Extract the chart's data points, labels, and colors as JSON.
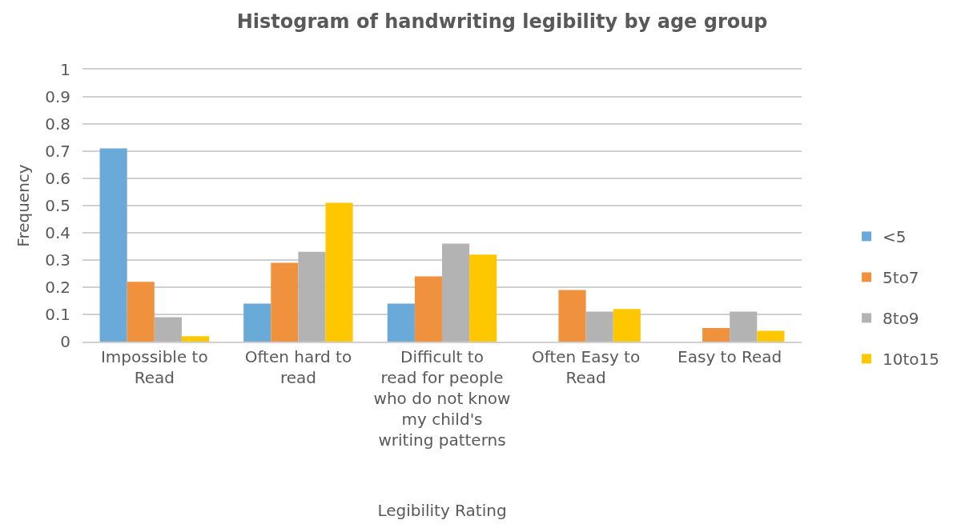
{
  "chart_data": {
    "type": "bar",
    "title": "Histogram of handwriting legibility by age group",
    "xlabel": "Legibility Rating",
    "ylabel": "Frequency",
    "categories": [
      "Impossible to Read",
      "Often hard to read",
      "Difficult to read for people who do not know my child's writing patterns",
      "Often Easy to Read",
      "Easy to Read"
    ],
    "series": [
      {
        "name": "<5",
        "color": "#6aaad9",
        "values": [
          0.71,
          0.14,
          0.14,
          0,
          0
        ]
      },
      {
        "name": "5to7",
        "color": "#f0913e",
        "values": [
          0.22,
          0.29,
          0.24,
          0.19,
          0.05
        ]
      },
      {
        "name": "8to9",
        "color": "#b3b3b3",
        "values": [
          0.09,
          0.33,
          0.36,
          0.11,
          0.11
        ]
      },
      {
        "name": "10to15",
        "color": "#ffc700",
        "values": [
          0.02,
          0.51,
          0.32,
          0.12,
          0.04
        ]
      }
    ],
    "ylim": [
      0,
      1
    ],
    "yticks": [
      0,
      0.1,
      0.2,
      0.3,
      0.4,
      0.5,
      0.6,
      0.7,
      0.8,
      0.9,
      1
    ],
    "grid": "y",
    "legend": "right"
  }
}
